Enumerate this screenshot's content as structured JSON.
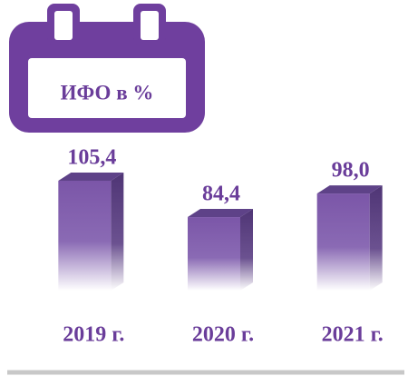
{
  "chart_data": {
    "type": "bar3d",
    "title": "ИФО в %",
    "categories": [
      "2019 г.",
      "2020 г.",
      "2021 г."
    ],
    "values": [
      105.4,
      84.4,
      98.0
    ],
    "value_labels": [
      "105,4",
      "84,4",
      "98,0"
    ],
    "color": "#7b56a8",
    "ylim": [
      42,
      108
    ]
  }
}
